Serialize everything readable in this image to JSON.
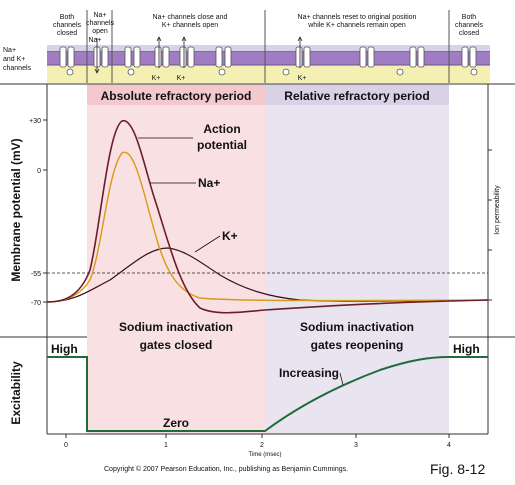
{
  "top_panel": {
    "side_label_line1": "Na+",
    "side_label_line2": "and K+",
    "side_label_line3": "channels",
    "phases": [
      {
        "line1": "Both",
        "line2": "channels",
        "line3": "closed"
      },
      {
        "line1": "Na+",
        "line2": "channels",
        "line3": "open",
        "ion": "Na+"
      },
      {
        "line1": "Na+ channels close and",
        "line2": "K+ channels open",
        "ion_a": "K+",
        "ion_b": "K+"
      },
      {
        "line1": "Na+ channels reset to original position",
        "line2": "while K+ channels remain open",
        "ion": "K+"
      },
      {
        "line1": "Both",
        "line2": "channels",
        "line3": "closed"
      }
    ]
  },
  "membrane_panel": {
    "absolute_title": "Absolute refractory period",
    "relative_title": "Relative refractory period",
    "y_axis_label": "Membrane potential (mV)",
    "right_axis_label": "Ion permeability",
    "y_ticks": [
      "+30",
      "0",
      "-55",
      "-70"
    ],
    "curve_labels": {
      "action_line1": "Action",
      "action_line2": "potential",
      "na": "Na+",
      "k": "K+"
    },
    "sodium_abs_line1": "Sodium inactivation",
    "sodium_abs_line2": "gates closed",
    "sodium_rel_line1": "Sodium inactivation",
    "sodium_rel_line2": "gates reopening"
  },
  "excitability_panel": {
    "y_axis_label": "Excitability",
    "high_left": "High",
    "high_right": "High",
    "zero": "Zero",
    "increasing": "Increasing"
  },
  "x_axis": {
    "ticks": [
      "0",
      "1",
      "2",
      "3",
      "4"
    ],
    "label": "Time (msec)"
  },
  "footer": {
    "copyright": "Copyright © 2007 Pearson Education, Inc., publishing as Benjamin Cummings.",
    "figure": "Fig. 8-12"
  },
  "colors": {
    "absolute_bg": "#f9e0e2",
    "relative_bg": "#e9e4f0",
    "membrane_purple": "#a07dc3",
    "membrane_yellow": "#f4efb3",
    "action_curve": "#6b1e2a",
    "na_curve": "#d89a1a",
    "k_curve": "#3a0f1e",
    "excitability_curve": "#1f6b3a"
  }
}
